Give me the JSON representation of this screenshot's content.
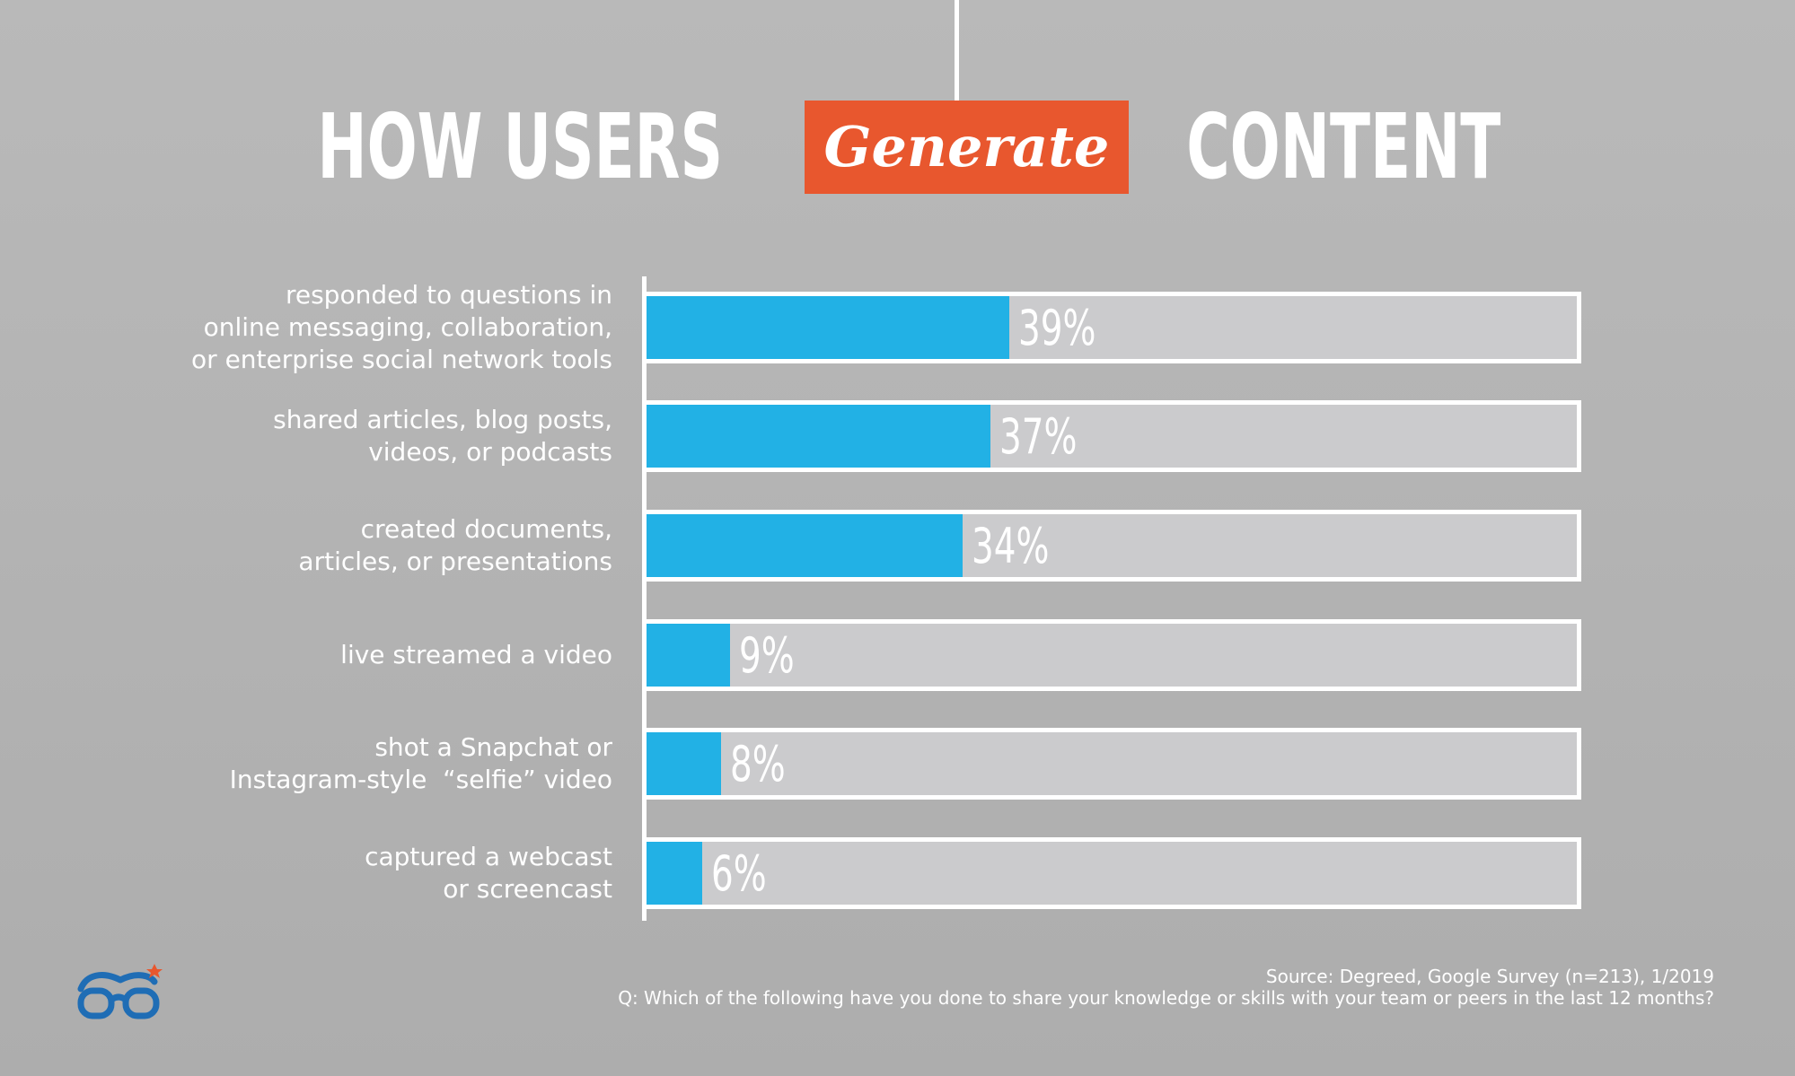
{
  "title": {
    "left": "HOW USERS",
    "highlight": "Generate",
    "right": "CONTENT"
  },
  "colors": {
    "background": "#b3b3b3",
    "bar": "#22b1e5",
    "track": "#cbcbcd",
    "accent": "#e8572e",
    "logo": "#1f6db5"
  },
  "logo": {
    "icon": "glasses-logo-icon"
  },
  "chart_data": {
    "type": "bar",
    "orientation": "horizontal",
    "categories": [
      "responded to questions in\nonline messaging, collaboration,\nor enterprise social network tools",
      "shared articles, blog posts,\nvideos, or podcasts",
      "created documents,\narticles, or presentations",
      "live streamed a video",
      "shot a Snapchat or\nInstagram-style  “selfie” video",
      "captured a webcast\nor screencast"
    ],
    "values": [
      39,
      37,
      34,
      9,
      8,
      6
    ],
    "value_labels": [
      "39%",
      "37%",
      "34%",
      "9%",
      "8%",
      "6%"
    ],
    "xlim": [
      0,
      100
    ],
    "grid": false,
    "legend": "none"
  },
  "source": {
    "line1": "Source: Degreed, Google Survey (n=213), 1/2019",
    "line2": "Q: Which of the following have you done to share your knowledge or skills with your team or peers in the last 12 months?"
  }
}
